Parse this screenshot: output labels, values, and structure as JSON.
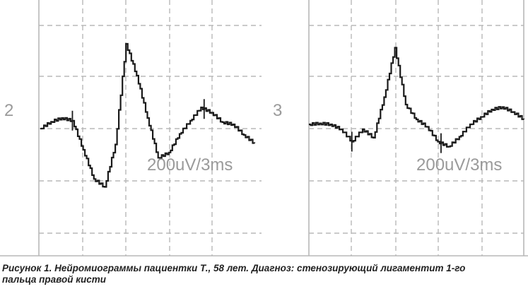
{
  "chart_data": [
    {
      "type": "line",
      "channel_label": "2",
      "scale_label": "200uV/3ms",
      "grid": true,
      "x": [
        0,
        1,
        2,
        3,
        4,
        5,
        6,
        7,
        8,
        9,
        10,
        11,
        12,
        13,
        14,
        15,
        16,
        17,
        18,
        19,
        20
      ],
      "y": [
        0,
        0.13,
        0.2,
        0.15,
        -0.4,
        -0.95,
        -1.1,
        -0.3,
        1.6,
        1.0,
        0.2,
        -0.55,
        -0.45,
        -0.1,
        0.15,
        0.4,
        0.3,
        0.12,
        0.08,
        -0.12,
        -0.28
      ]
    },
    {
      "type": "line",
      "channel_label": "3",
      "scale_label": "200uV/3ms",
      "grid": true,
      "x": [
        0,
        1,
        2,
        3,
        4,
        5,
        6,
        7,
        8,
        9,
        10,
        11,
        12,
        13,
        14,
        15,
        16,
        17,
        18,
        19,
        20
      ],
      "y": [
        0,
        0.02,
        0.0,
        -0.1,
        -0.35,
        -0.1,
        -0.27,
        0.55,
        1.55,
        0.4,
        0.1,
        -0.05,
        -0.35,
        -0.45,
        -0.25,
        0.0,
        0.15,
        0.3,
        0.35,
        0.25,
        0.1
      ]
    }
  ],
  "caption": {
    "line1": "Рисунок 1. Нейромиограммы пациентки Т., 58 лет. Диагноз: стенозирующий лигаментит 1-го",
    "line2": "пальца правой кисти"
  },
  "colors": {
    "grid": "#b8b8b8",
    "trace": "#1a1a1a",
    "label": "#9a9a9a"
  }
}
